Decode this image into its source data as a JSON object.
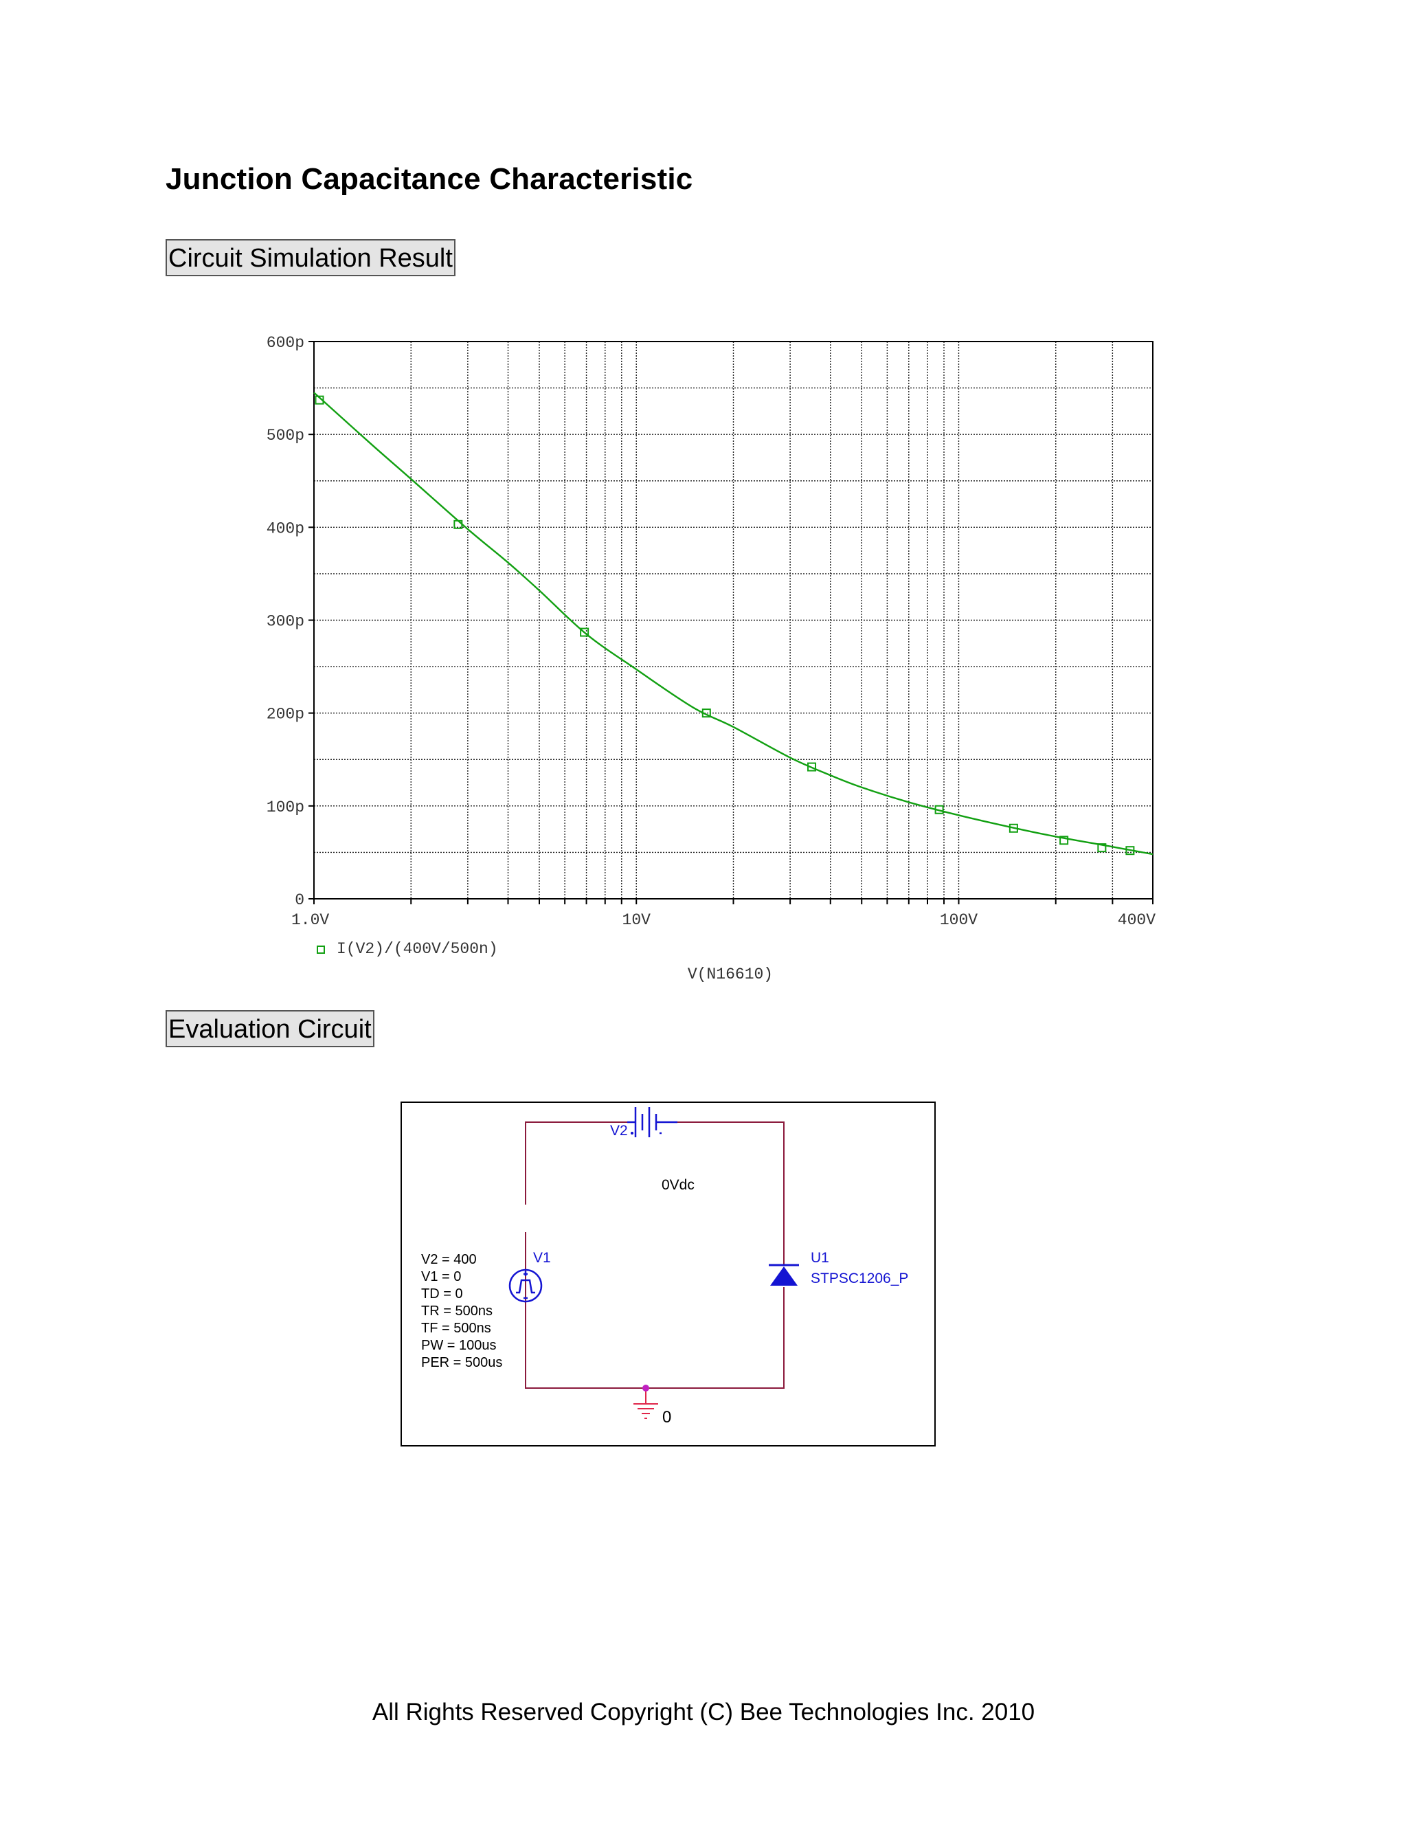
{
  "page": {
    "title": "Junction Capacitance Characteristic",
    "section_simulation": "Circuit Simulation Result",
    "section_circuit": "Evaluation Circuit",
    "footer": "All Rights Reserved Copyright (C) Bee Technologies Inc. 2010"
  },
  "chart_data": {
    "type": "line",
    "title": "",
    "xlabel": "V(N16610)",
    "ylabel": "",
    "x_scale": "log",
    "xlim": [
      1,
      400
    ],
    "ylim": [
      0,
      600
    ],
    "y_unit": "p",
    "x_tick_labels": [
      "1.0V",
      "10V",
      "100V",
      "400V"
    ],
    "x_tick_values": [
      1,
      10,
      100,
      400
    ],
    "y_tick_labels": [
      "0",
      "100p",
      "200p",
      "300p",
      "400p",
      "500p",
      "600p"
    ],
    "y_tick_values": [
      0,
      100,
      200,
      300,
      400,
      500,
      600
    ],
    "grid": true,
    "legend_position": "bottom-left",
    "line_color": "#12a012",
    "series": [
      {
        "name": "I(V2)/(400V/500n)",
        "x": [
          1,
          1.5,
          2,
          3,
          4,
          5,
          7,
          10,
          15,
          20,
          30,
          40,
          50,
          70,
          100,
          150,
          200,
          300,
          400
        ],
        "y": [
          545,
          490,
          452,
          398,
          362,
          332,
          285,
          247,
          206,
          185,
          152,
          133,
          120,
          104,
          90,
          76,
          67,
          56,
          48
        ]
      }
    ],
    "markers": {
      "shape": "square",
      "x": [
        1.04,
        2.8,
        6.9,
        16.5,
        35,
        87,
        148,
        212,
        278,
        340
      ],
      "y": [
        537,
        403,
        287,
        200,
        142,
        96,
        76,
        63,
        55,
        52
      ]
    }
  },
  "circuit": {
    "v2_name": "V2",
    "v2_value": "0Vdc",
    "v1_name": "V1",
    "v1_params": [
      "V2 = 400",
      "V1 = 0",
      "TD = 0",
      "TR = 500ns",
      "TF = 500ns",
      "PW = 100us",
      "PER = 500us"
    ],
    "u1_name": "U1",
    "u1_part": "STPSC1206_P",
    "ground_label": "0",
    "wire_color": "#8b1a3c",
    "component_color": "#1414d2"
  }
}
